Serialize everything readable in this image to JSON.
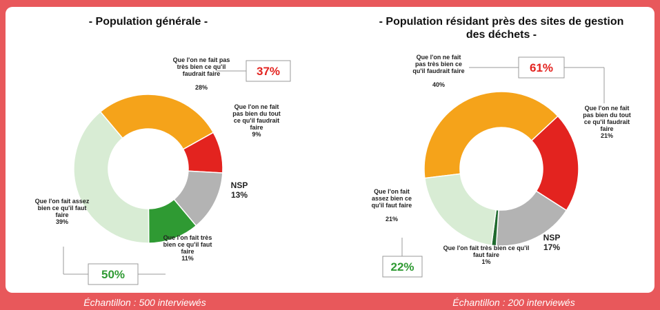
{
  "chart_data": [
    {
      "type": "donut",
      "title": "- Population générale -",
      "categories": [
        "Que l'on ne fait pas très bien ce qu'il faudrait faire",
        "Que l'on ne fait pas bien du tout ce qu'il faudrait faire",
        "NSP",
        "Que l'on fait très bien ce qu'il faut faire",
        "Que l'on fait assez bien ce qu'il faut faire"
      ],
      "values": [
        28,
        9,
        13,
        11,
        39
      ],
      "value_labels": [
        "28%",
        "9%",
        "13%",
        "11%",
        "39%"
      ],
      "colors": [
        "#f5a31a",
        "#e3231f",
        "#b3b3b3",
        "#2f9a33",
        "#d8ecd4"
      ],
      "annotations": [
        {
          "text": "37%",
          "color": "#e3231f"
        },
        {
          "text": "50%",
          "color": "#2f9a33"
        }
      ],
      "note": "Échantillon : 500 interviewés"
    },
    {
      "type": "donut",
      "title": "- Population résidant près des sites de gestion des déchets -",
      "categories": [
        "Que l'on ne fait pas très bien ce qu'il faudrait faire",
        "Que l'on ne fait pas bien du tout ce qu'il faudrait faire",
        "NSP",
        "Que l'on fait très bien ce qu'il faut faire",
        "Que l'on fait assez bien ce qu'il faut faire"
      ],
      "values": [
        40,
        21,
        17,
        1,
        21
      ],
      "value_labels": [
        "40%",
        "21%",
        "17%",
        "1%",
        "21%"
      ],
      "colors": [
        "#f5a31a",
        "#e3231f",
        "#b3b3b3",
        "#1f6a2e",
        "#d8ecd4"
      ],
      "annotations": [
        {
          "text": "61%",
          "color": "#e3231f"
        },
        {
          "text": "22%",
          "color": "#2f9a33"
        }
      ],
      "note": "Échantillon : 200 interviewés"
    }
  ]
}
